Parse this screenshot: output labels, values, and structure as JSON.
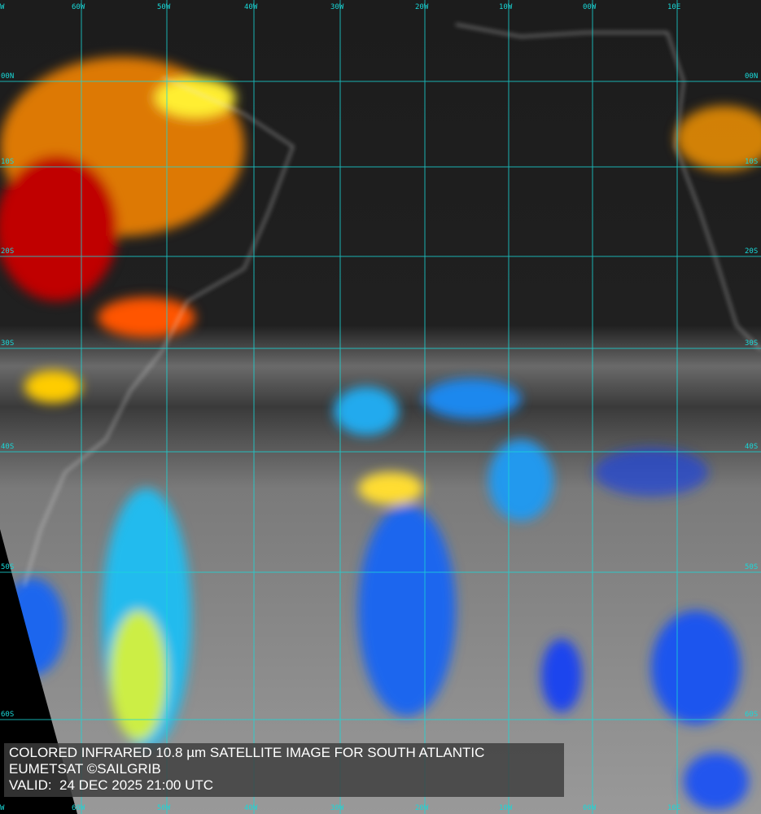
{
  "caption": {
    "title": "COLORED INFRARED 10.8 µm SATELLITE IMAGE FOR SOUTH ATLANTIC",
    "credit": "EUMETSAT ©SAILGRIB",
    "valid": "VALID:  24 DEC 2025 21:00 UTC"
  },
  "grid": {
    "color": "#19d8d8",
    "longitudes": [
      "W",
      "60W",
      "50W",
      "40W",
      "30W",
      "20W",
      "10W",
      "00W",
      "10E"
    ],
    "latitudes": [
      "00N",
      "10S",
      "20S",
      "30S",
      "40S",
      "50S",
      "60S"
    ]
  },
  "palette": {
    "cold_tops_red": "#d00000",
    "orange": "#ff8a00",
    "yellow": "#ffee33",
    "cyan": "#22ddee",
    "blue": "#0030e0",
    "coastline": "#e8e8e8"
  }
}
